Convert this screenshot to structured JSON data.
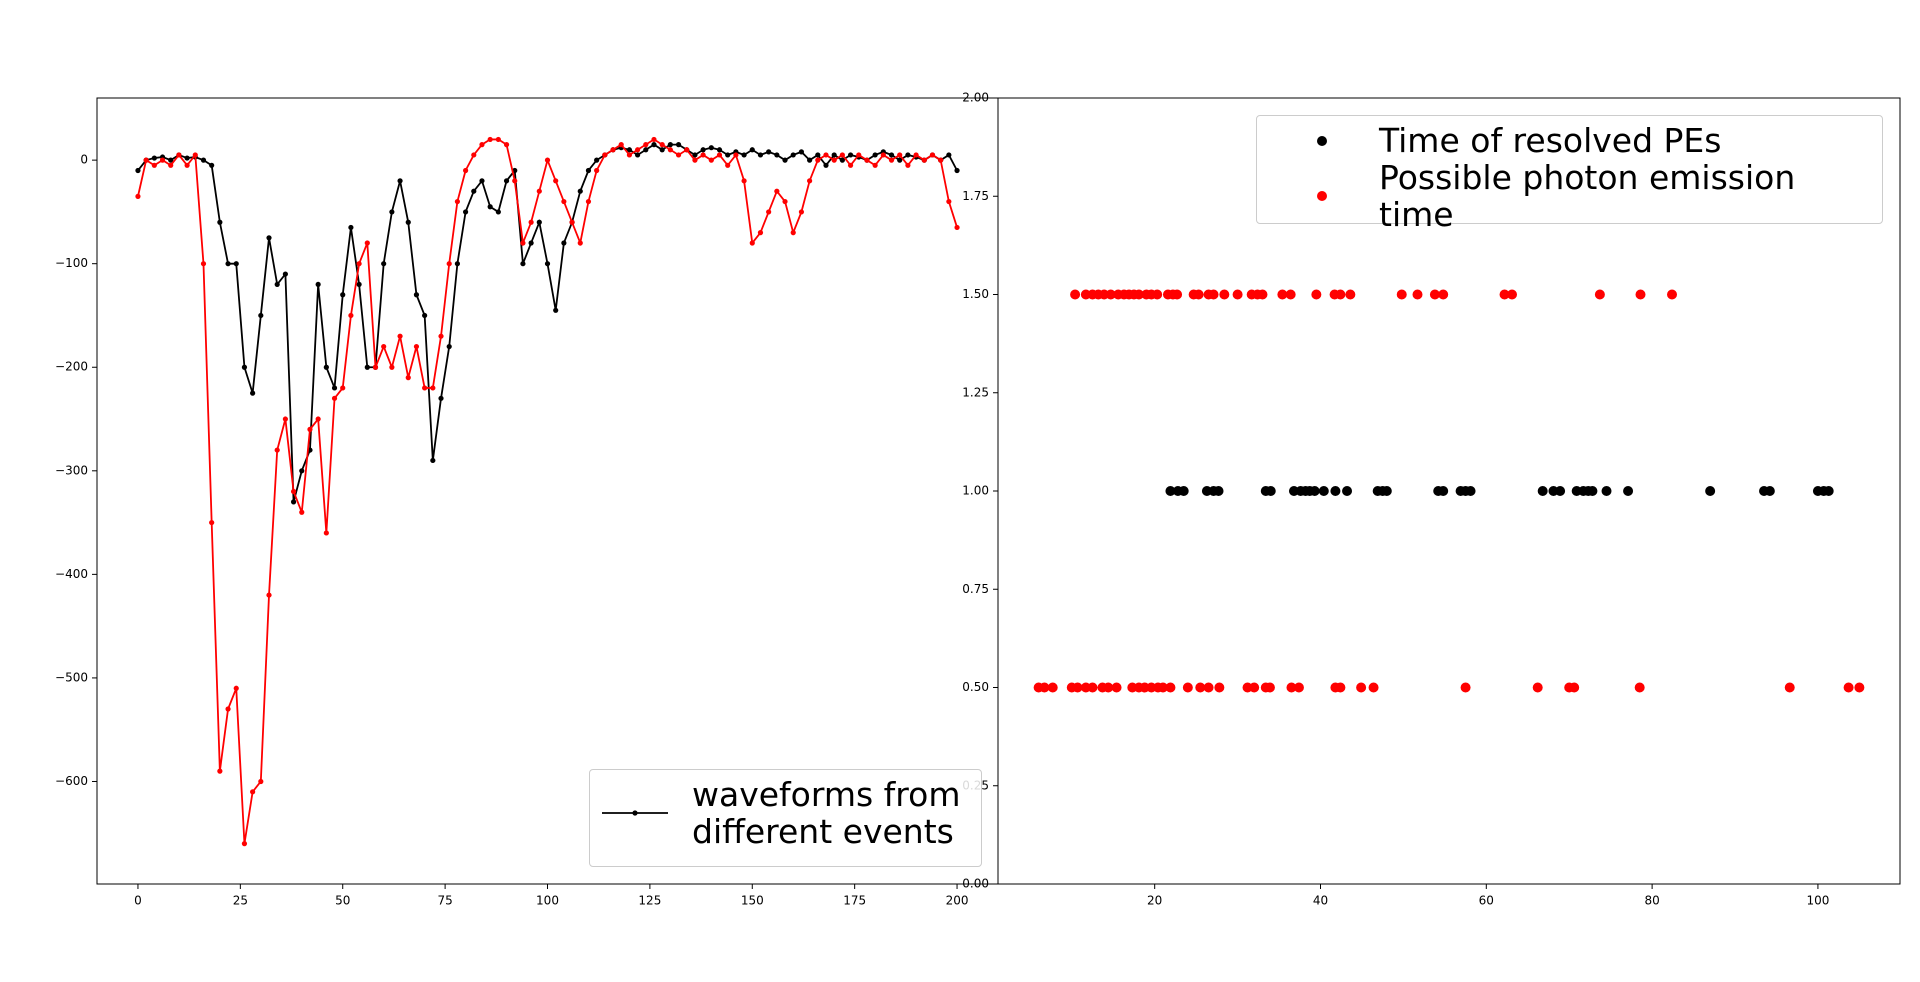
{
  "chart_data": [
    {
      "type": "line",
      "x": [
        0,
        2,
        4,
        6,
        8,
        10,
        12,
        14,
        16,
        18,
        20,
        22,
        24,
        26,
        28,
        30,
        32,
        34,
        36,
        38,
        40,
        42,
        44,
        46,
        48,
        50,
        52,
        54,
        56,
        58,
        60,
        62,
        64,
        66,
        68,
        70,
        72,
        74,
        76,
        78,
        80,
        82,
        84,
        86,
        88,
        90,
        92,
        94,
        96,
        98,
        100,
        102,
        104,
        106,
        108,
        110,
        112,
        114,
        116,
        118,
        120,
        122,
        124,
        126,
        128,
        130,
        132,
        134,
        136,
        138,
        140,
        142,
        144,
        146,
        148,
        150,
        152,
        154,
        156,
        158,
        160,
        162,
        164,
        166,
        168,
        170,
        172,
        174,
        176,
        178,
        180,
        182,
        184,
        186,
        188,
        190,
        192,
        194,
        196,
        198,
        200
      ],
      "series": [
        {
          "name": "waveforms from different events",
          "color": "#000000",
          "values": [
            -10,
            0,
            2,
            3,
            0,
            5,
            2,
            3,
            0,
            -5,
            -60,
            -100,
            -100,
            -200,
            -225,
            -150,
            -75,
            -120,
            -110,
            -330,
            -300,
            -280,
            -120,
            -200,
            -220,
            -130,
            -65,
            -120,
            -200,
            -200,
            -100,
            -50,
            -20,
            -60,
            -130,
            -150,
            -290,
            -230,
            -180,
            -100,
            -50,
            -30,
            -20,
            -45,
            -50,
            -20,
            -10,
            -100,
            -80,
            -60,
            -100,
            -145,
            -80,
            -60,
            -30,
            -10,
            0,
            5,
            10,
            12,
            10,
            5,
            10,
            15,
            10,
            15,
            15,
            10,
            5,
            10,
            12,
            10,
            5,
            8,
            5,
            10,
            5,
            8,
            5,
            0,
            5,
            8,
            0,
            5,
            -5,
            5,
            0,
            5,
            3,
            0,
            5,
            8,
            5,
            0,
            5,
            3,
            0,
            5,
            0,
            5,
            -10
          ]
        },
        {
          "color": "#ff0000",
          "values": [
            -35,
            0,
            -5,
            0,
            -5,
            5,
            -5,
            5,
            -100,
            -350,
            -590,
            -530,
            -510,
            -660,
            -610,
            -600,
            -420,
            -280,
            -250,
            -320,
            -340,
            -260,
            -250,
            -360,
            -230,
            -220,
            -150,
            -100,
            -80,
            -200,
            -180,
            -200,
            -170,
            -210,
            -180,
            -220,
            -220,
            -170,
            -100,
            -40,
            -10,
            5,
            15,
            20,
            20,
            15,
            -20,
            -80,
            -60,
            -30,
            0,
            -20,
            -40,
            -60,
            -80,
            -40,
            -10,
            5,
            10,
            15,
            5,
            10,
            15,
            20,
            15,
            10,
            5,
            10,
            0,
            5,
            0,
            5,
            -5,
            5,
            -20,
            -80,
            -70,
            -50,
            -30,
            -40,
            -70,
            -50,
            -20,
            0,
            5,
            0,
            5,
            -5,
            5,
            0,
            -5,
            5,
            0,
            5,
            -5,
            5,
            0,
            5,
            0,
            -40,
            -65
          ]
        }
      ],
      "xlim": [
        -10,
        210
      ],
      "ylim": [
        -699,
        60
      ],
      "xticks": [
        0,
        25,
        50,
        75,
        100,
        125,
        150,
        175,
        200
      ],
      "yticks": [
        {
          "value": -600,
          "label": "−600"
        },
        {
          "value": -500,
          "label": "−500"
        },
        {
          "value": -400,
          "label": "−400"
        },
        {
          "value": -300,
          "label": "−300"
        },
        {
          "value": -200,
          "label": "−200"
        },
        {
          "value": -100,
          "label": "−100"
        },
        0
      ],
      "legend": "lower right"
    },
    {
      "type": "scatter",
      "series": [
        {
          "name": "Time of resolved PEs",
          "color": "#000000",
          "x": [
            21.9,
            22.8,
            23.5,
            26.3,
            27.1,
            27.7,
            33.4,
            34.0,
            36.8,
            37.6,
            38.2,
            38.7,
            39.3,
            40.4,
            41.8,
            43.2,
            46.9,
            47.5,
            48.0,
            54.2,
            54.8,
            56.9,
            57.5,
            58.1,
            66.8,
            68.1,
            68.9,
            70.9,
            71.7,
            72.3,
            72.8,
            74.5,
            77.1,
            87.0,
            93.5,
            94.2,
            100.0,
            100.7,
            101.3
          ],
          "values": [
            1,
            1,
            1,
            1,
            1,
            1,
            1,
            1,
            1,
            1,
            1,
            1,
            1,
            1,
            1,
            1,
            1,
            1,
            1,
            1,
            1,
            1,
            1,
            1,
            1,
            1,
            1,
            1,
            1,
            1,
            1,
            1,
            1,
            1,
            1,
            1,
            1,
            1,
            1
          ]
        },
        {
          "name": "Possible photon emission time",
          "color": "#ff0000",
          "x": [
            10.4,
            11.7,
            12.5,
            13.2,
            13.9,
            14.7,
            15.6,
            16.3,
            16.9,
            17.5,
            18.1,
            19.0,
            19.6,
            20.3,
            21.6,
            22.2,
            22.7,
            24.7,
            25.3,
            26.5,
            27.1,
            28.4,
            30.0,
            31.7,
            32.4,
            33.0,
            35.4,
            36.4,
            39.5,
            41.7,
            42.4,
            43.6,
            49.8,
            51.7,
            53.8,
            54.8,
            62.2,
            63.1,
            73.7,
            78.6,
            82.4,
            6.0,
            6.7,
            7.7,
            10.0,
            10.7,
            11.7,
            12.5,
            13.7,
            14.4,
            15.4,
            17.3,
            18.1,
            18.8,
            19.6,
            20.4,
            21.0,
            21.9,
            24.0,
            25.5,
            26.5,
            27.8,
            31.2,
            32.0,
            33.4,
            33.9,
            36.5,
            37.4,
            41.8,
            42.4,
            44.9,
            46.4,
            57.5,
            66.2,
            70.0,
            70.6,
            78.5,
            96.6,
            103.7,
            105.0
          ],
          "values": [
            1.5,
            1.5,
            1.5,
            1.5,
            1.5,
            1.5,
            1.5,
            1.5,
            1.5,
            1.5,
            1.5,
            1.5,
            1.5,
            1.5,
            1.5,
            1.5,
            1.5,
            1.5,
            1.5,
            1.5,
            1.5,
            1.5,
            1.5,
            1.5,
            1.5,
            1.5,
            1.5,
            1.5,
            1.5,
            1.5,
            1.5,
            1.5,
            1.5,
            1.5,
            1.5,
            1.5,
            1.5,
            1.5,
            1.5,
            1.5,
            1.5,
            0.5,
            0.5,
            0.5,
            0.5,
            0.5,
            0.5,
            0.5,
            0.5,
            0.5,
            0.5,
            0.5,
            0.5,
            0.5,
            0.5,
            0.5,
            0.5,
            0.5,
            0.5,
            0.5,
            0.5,
            0.5,
            0.5,
            0.5,
            0.5,
            0.5,
            0.5,
            0.5,
            0.5,
            0.5,
            0.5,
            0.5,
            0.5,
            0.5,
            0.5,
            0.5,
            0.5,
            0.5,
            0.5,
            0.5
          ]
        }
      ],
      "xlim": [
        1.1,
        109.9
      ],
      "ylim": [
        0,
        2
      ],
      "xticks": [
        20,
        40,
        60,
        80,
        100
      ],
      "yticks": [
        {
          "value": 0,
          "label": "0.00"
        },
        {
          "value": 0.25,
          "label": "0.25"
        },
        {
          "value": 0.5,
          "label": "0.50"
        },
        {
          "value": 0.75,
          "label": "0.75"
        },
        {
          "value": 1,
          "label": "1.00"
        },
        {
          "value": 1.25,
          "label": "1.25"
        },
        {
          "value": 1.5,
          "label": "1.50"
        },
        {
          "value": 1.75,
          "label": "1.75"
        },
        {
          "value": 2,
          "label": "2.00"
        }
      ],
      "legend": "upper right"
    }
  ]
}
